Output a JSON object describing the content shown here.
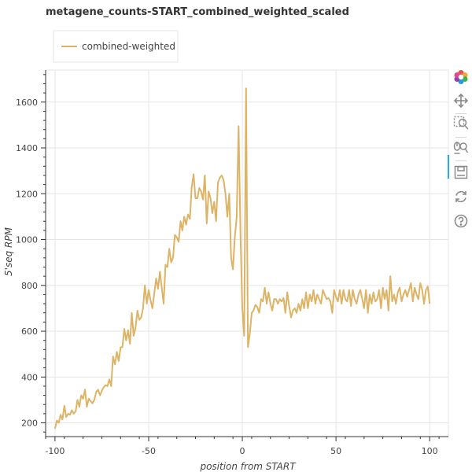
{
  "title": "metagene_counts-START_combined_weighted_scaled",
  "chart_data": {
    "type": "line",
    "xlabel": "position from START",
    "ylabel": "5'seq RPM",
    "xlim": [
      -105,
      110
    ],
    "ylim": [
      140,
      1740
    ],
    "xticks": [
      -100,
      -50,
      0,
      50,
      100
    ],
    "yticks": [
      200,
      400,
      600,
      800,
      1000,
      1200,
      1400,
      1600
    ],
    "xtick_labels": [
      "-100",
      "-50",
      "0",
      "50",
      "100"
    ],
    "ytick_labels": [
      "200",
      "400",
      "600",
      "800",
      "1000",
      "1200",
      "1400",
      "1600"
    ],
    "grid": true,
    "legend_position": "top-left",
    "series": [
      {
        "name": "combined-weighted",
        "color": "#ddb466",
        "points": [
          [
            -100,
            175
          ],
          [
            -99,
            210
          ],
          [
            -98,
            200
          ],
          [
            -97,
            235
          ],
          [
            -96,
            215
          ],
          [
            -95,
            275
          ],
          [
            -94,
            225
          ],
          [
            -93,
            240
          ],
          [
            -92,
            235
          ],
          [
            -91,
            255
          ],
          [
            -90,
            240
          ],
          [
            -89,
            250
          ],
          [
            -88,
            300
          ],
          [
            -87,
            270
          ],
          [
            -86,
            320
          ],
          [
            -85,
            305
          ],
          [
            -84,
            345
          ],
          [
            -83,
            270
          ],
          [
            -82,
            305
          ],
          [
            -81,
            295
          ],
          [
            -80,
            285
          ],
          [
            -79,
            300
          ],
          [
            -78,
            335
          ],
          [
            -77,
            345
          ],
          [
            -76,
            320
          ],
          [
            -75,
            340
          ],
          [
            -74,
            355
          ],
          [
            -73,
            365
          ],
          [
            -72,
            360
          ],
          [
            -71,
            390
          ],
          [
            -70,
            360
          ],
          [
            -69,
            490
          ],
          [
            -68,
            455
          ],
          [
            -67,
            510
          ],
          [
            -66,
            470
          ],
          [
            -65,
            530
          ],
          [
            -64,
            530
          ],
          [
            -63,
            610
          ],
          [
            -62,
            560
          ],
          [
            -61,
            605
          ],
          [
            -60,
            545
          ],
          [
            -59,
            680
          ],
          [
            -58,
            580
          ],
          [
            -57,
            615
          ],
          [
            -56,
            690
          ],
          [
            -55,
            650
          ],
          [
            -54,
            660
          ],
          [
            -53,
            700
          ],
          [
            -52,
            800
          ],
          [
            -51,
            720
          ],
          [
            -50,
            780
          ],
          [
            -49,
            735
          ],
          [
            -48,
            700
          ],
          [
            -47,
            765
          ],
          [
            -46,
            830
          ],
          [
            -45,
            785
          ],
          [
            -44,
            860
          ],
          [
            -43,
            790
          ],
          [
            -42,
            720
          ],
          [
            -41,
            890
          ],
          [
            -40,
            880
          ],
          [
            -39,
            960
          ],
          [
            -38,
            900
          ],
          [
            -37,
            920
          ],
          [
            -36,
            1020
          ],
          [
            -35,
            1010
          ],
          [
            -34,
            990
          ],
          [
            -33,
            1080
          ],
          [
            -32,
            1040
          ],
          [
            -31,
            1100
          ],
          [
            -30,
            1065
          ],
          [
            -29,
            1110
          ],
          [
            -28,
            1090
          ],
          [
            -27,
            1230
          ],
          [
            -26,
            1285
          ],
          [
            -25,
            1180
          ],
          [
            -24,
            1180
          ],
          [
            -23,
            1225
          ],
          [
            -22,
            1210
          ],
          [
            -21,
            1175
          ],
          [
            -20,
            1280
          ],
          [
            -19,
            1070
          ],
          [
            -18,
            1210
          ],
          [
            -17,
            1180
          ],
          [
            -16,
            1115
          ],
          [
            -15,
            1165
          ],
          [
            -14,
            1080
          ],
          [
            -13,
            1250
          ],
          [
            -12,
            1270
          ],
          [
            -11,
            1280
          ],
          [
            -10,
            1260
          ],
          [
            -9,
            1200
          ],
          [
            -8,
            1100
          ],
          [
            -7,
            1200
          ],
          [
            -6,
            920
          ],
          [
            -5,
            870
          ],
          [
            -4,
            1010
          ],
          [
            -3,
            1100
          ],
          [
            -2,
            1495
          ],
          [
            -1,
            1025
          ],
          [
            0,
            700
          ],
          [
            1,
            580
          ],
          [
            2,
            1660
          ],
          [
            3,
            530
          ],
          [
            4,
            590
          ],
          [
            5,
            680
          ],
          [
            6,
            690
          ],
          [
            7,
            715
          ],
          [
            8,
            705
          ],
          [
            9,
            680
          ],
          [
            10,
            740
          ],
          [
            11,
            730
          ],
          [
            12,
            790
          ],
          [
            13,
            720
          ],
          [
            14,
            770
          ],
          [
            15,
            720
          ],
          [
            16,
            690
          ],
          [
            17,
            740
          ],
          [
            18,
            740
          ],
          [
            19,
            720
          ],
          [
            20,
            740
          ],
          [
            21,
            730
          ],
          [
            22,
            745
          ],
          [
            23,
            680
          ],
          [
            24,
            770
          ],
          [
            25,
            710
          ],
          [
            26,
            660
          ],
          [
            27,
            690
          ],
          [
            28,
            700
          ],
          [
            29,
            680
          ],
          [
            30,
            720
          ],
          [
            31,
            690
          ],
          [
            32,
            740
          ],
          [
            33,
            700
          ],
          [
            34,
            770
          ],
          [
            35,
            700
          ],
          [
            36,
            760
          ],
          [
            37,
            730
          ],
          [
            38,
            780
          ],
          [
            39,
            720
          ],
          [
            40,
            760
          ],
          [
            41,
            740
          ],
          [
            42,
            720
          ],
          [
            43,
            780
          ],
          [
            44,
            760
          ],
          [
            45,
            740
          ],
          [
            46,
            745
          ],
          [
            47,
            730
          ],
          [
            48,
            680
          ],
          [
            49,
            780
          ],
          [
            50,
            750
          ],
          [
            51,
            730
          ],
          [
            52,
            780
          ],
          [
            53,
            720
          ],
          [
            54,
            780
          ],
          [
            55,
            740
          ],
          [
            56,
            730
          ],
          [
            57,
            780
          ],
          [
            58,
            710
          ],
          [
            59,
            780
          ],
          [
            60,
            740
          ],
          [
            61,
            720
          ],
          [
            62,
            760
          ],
          [
            63,
            780
          ],
          [
            64,
            740
          ],
          [
            65,
            700
          ],
          [
            66,
            780
          ],
          [
            67,
            680
          ],
          [
            68,
            760
          ],
          [
            69,
            720
          ],
          [
            70,
            770
          ],
          [
            71,
            730
          ],
          [
            72,
            740
          ],
          [
            73,
            780
          ],
          [
            74,
            700
          ],
          [
            75,
            790
          ],
          [
            76,
            740
          ],
          [
            77,
            780
          ],
          [
            78,
            690
          ],
          [
            79,
            840
          ],
          [
            80,
            730
          ],
          [
            81,
            760
          ],
          [
            82,
            720
          ],
          [
            83,
            770
          ],
          [
            84,
            790
          ],
          [
            85,
            730
          ],
          [
            86,
            760
          ],
          [
            87,
            780
          ],
          [
            88,
            750
          ],
          [
            89,
            780
          ],
          [
            90,
            810
          ],
          [
            91,
            730
          ],
          [
            92,
            790
          ],
          [
            93,
            760
          ],
          [
            94,
            740
          ],
          [
            95,
            810
          ],
          [
            96,
            780
          ],
          [
            97,
            720
          ],
          [
            98,
            780
          ],
          [
            99,
            795
          ],
          [
            100,
            720
          ]
        ]
      }
    ]
  },
  "toolbar": {
    "items": [
      {
        "name": "bokeh-logo-icon",
        "interactable": false
      },
      {
        "name": "pan-tool-icon",
        "interactable": true
      },
      {
        "name": "box-zoom-tool-icon",
        "interactable": true
      },
      {
        "name": "wheel-zoom-tool-icon",
        "interactable": true
      },
      {
        "name": "save-tool-icon",
        "interactable": true
      },
      {
        "name": "reset-tool-icon",
        "interactable": true
      },
      {
        "name": "help-tool-icon",
        "interactable": true
      }
    ]
  }
}
